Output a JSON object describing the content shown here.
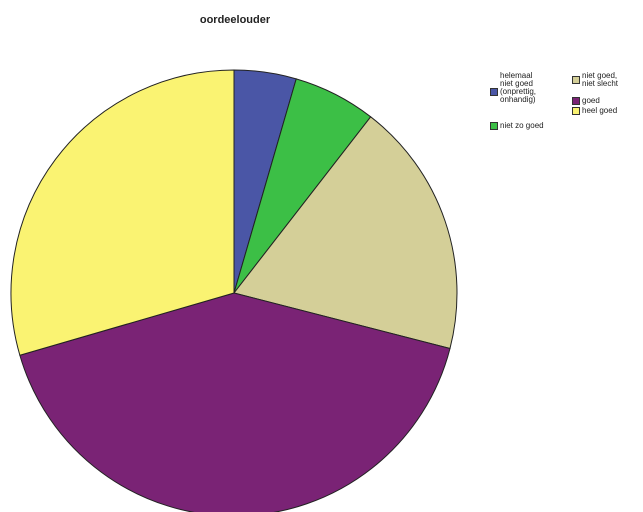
{
  "chart_data": {
    "type": "pie",
    "title": "oordeelouder",
    "slices": [
      {
        "label": "helemaal niet goed (onprettig, onhandig)",
        "value": 4.5,
        "color": "#4a56a6"
      },
      {
        "label": "niet zo goed",
        "value": 6.0,
        "color": "#3cbf46"
      },
      {
        "label": "niet goed, niet slecht",
        "value": 18.5,
        "color": "#d4cf98"
      },
      {
        "label": "goed",
        "value": 41.5,
        "color": "#7a2375"
      },
      {
        "label": "heel goed",
        "value": 29.5,
        "color": "#faf372"
      }
    ],
    "legend": {
      "placement": "top-right",
      "entries": [
        {
          "text": "helemaal\nniet goed\n(onprettig,\nonhandig)",
          "color": "#4a56a6"
        },
        {
          "text": "niet zo goed",
          "color": "#3cbf46"
        },
        {
          "text": "niet goed,\nniet slecht",
          "color": "#d4cf98"
        },
        {
          "text": "goed",
          "color": "#7a2375"
        },
        {
          "text": "heel goed",
          "color": "#faf372"
        }
      ]
    }
  }
}
